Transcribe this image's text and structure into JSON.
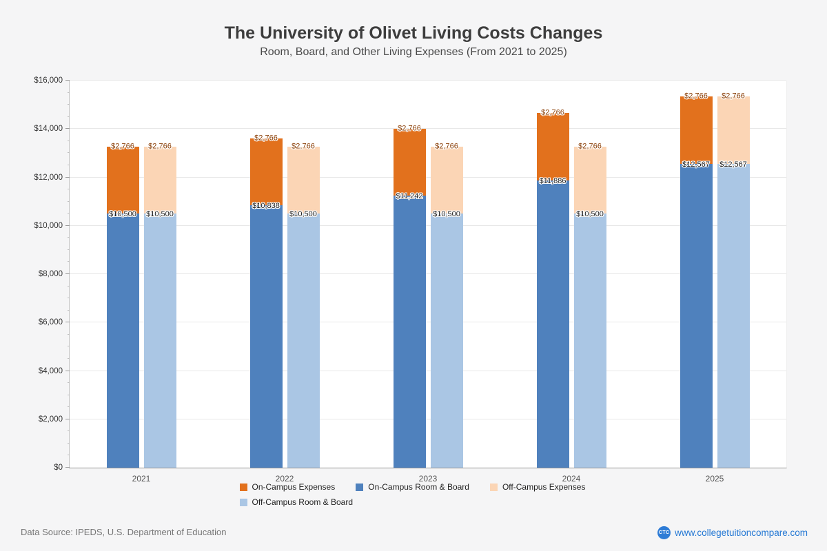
{
  "chart_data": {
    "type": "bar",
    "stacked": true,
    "title": "The University of Olivet Living Costs Changes",
    "subtitle": "Room, Board, and Other Living Expenses (From 2021 to 2025)",
    "categories": [
      "2021",
      "2022",
      "2023",
      "2024",
      "2025"
    ],
    "ylim": [
      0,
      16000
    ],
    "ytick_step": 2000,
    "minor_tick_step": 500,
    "ytick_labels": [
      "$0",
      "$2,000",
      "$4,000",
      "$6,000",
      "$8,000",
      "$10,000",
      "$12,000",
      "$14,000",
      "$16,000"
    ],
    "grid": true,
    "legend_position": "bottom",
    "series": [
      {
        "name": "On-Campus Expenses",
        "stack": "on-campus",
        "role": "top",
        "color": "#e2711d",
        "label_color": "#8a3e06",
        "values": [
          2766,
          2766,
          2766,
          2766,
          2766
        ],
        "labels": [
          "$2,766",
          "$2,766",
          "$2,766",
          "$2,766",
          "$2,766"
        ]
      },
      {
        "name": "On-Campus Room & Board",
        "stack": "on-campus",
        "role": "base",
        "color": "#4f81bd",
        "label_color": "#1a1a1a",
        "values": [
          10500,
          10838,
          11242,
          11886,
          12567
        ],
        "labels": [
          "$10,500",
          "$10,838",
          "$11,242",
          "$11,886",
          "$12,567"
        ]
      },
      {
        "name": "Off-Campus Expenses",
        "stack": "off-campus",
        "role": "top",
        "color": "#fbd5b5",
        "label_color": "#8a3e06",
        "values": [
          2766,
          2766,
          2766,
          2766,
          2766
        ],
        "labels": [
          "$2,766",
          "$2,766",
          "$2,766",
          "$2,766",
          "$2,766"
        ]
      },
      {
        "name": "Off-Campus Room & Board",
        "stack": "off-campus",
        "role": "base",
        "color": "#aac6e4",
        "label_color": "#1a1a1a",
        "values": [
          10500,
          10500,
          10500,
          10500,
          12567
        ],
        "labels": [
          "$10,500",
          "$10,500",
          "$10,500",
          "$10,500",
          "$12,567"
        ]
      }
    ]
  },
  "footer": {
    "source": "Data Source: IPEDS, U.S. Department of Education",
    "logo_text": "CTC",
    "site": "www.collegetuitioncompare.com"
  }
}
